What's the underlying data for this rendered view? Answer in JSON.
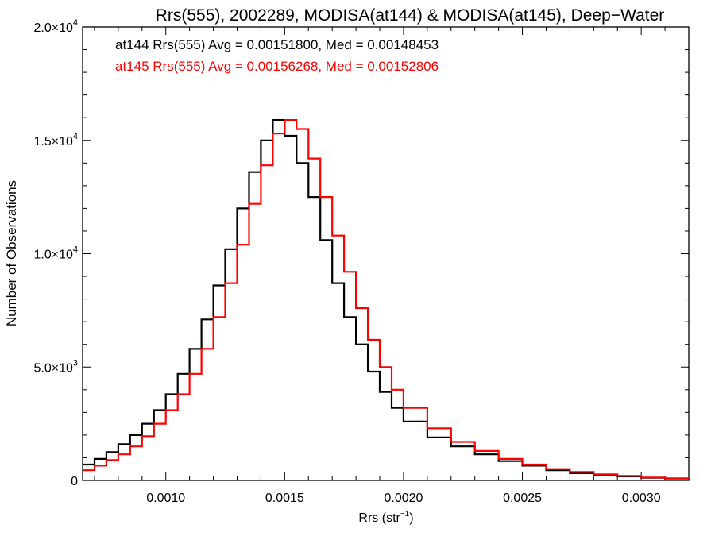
{
  "chart_data": {
    "type": "line",
    "title": "Rrs(555), 2002289, MODISA(at144) & MODISA(at145), Deep−Water",
    "xlabel": "Rrs (str",
    "xlabel_sup": "−1",
    "xlabel_close": ")",
    "ylabel": "Number of Observations",
    "xlim": [
      0.00065,
      0.0032
    ],
    "ylim": [
      0,
      20000
    ],
    "grid": false,
    "x_ticks": [
      0.001,
      0.0015,
      0.002,
      0.0025,
      0.003
    ],
    "x_tick_labels": [
      "0.0010",
      "0.0015",
      "0.0020",
      "0.0025",
      "0.0030"
    ],
    "y_ticks": [
      0,
      5000,
      10000,
      15000,
      20000
    ],
    "y_tick_labels": [
      {
        "mant": "0",
        "exp": ""
      },
      {
        "mant": "5.0×10",
        "exp": "3"
      },
      {
        "mant": "1.0×10",
        "exp": "4"
      },
      {
        "mant": "1.5×10",
        "exp": "4"
      },
      {
        "mant": "2.0×10",
        "exp": "4"
      }
    ],
    "annotations": [
      {
        "text": "at144 Rrs(555) Avg = 0.00151800, Med = 0.00148453",
        "color": "#000000"
      },
      {
        "text": "at145 Rrs(555) Avg = 0.00156268, Med = 0.00152806",
        "color": "#ff0000"
      }
    ],
    "series": [
      {
        "color": "#000000",
        "x": [
          0.00065,
          0.0007,
          0.00075,
          0.0008,
          0.00085,
          0.0009,
          0.00095,
          0.001,
          0.00105,
          0.0011,
          0.00115,
          0.0012,
          0.00125,
          0.0013,
          0.00135,
          0.0014,
          0.00145,
          0.0015,
          0.00155,
          0.0016,
          0.00165,
          0.0017,
          0.00175,
          0.0018,
          0.00185,
          0.0019,
          0.00195,
          0.002,
          0.0021,
          0.0022,
          0.0023,
          0.0024,
          0.0025,
          0.0026,
          0.0027,
          0.0028,
          0.0029,
          0.003,
          0.0031,
          0.0032
        ],
        "y": [
          700,
          950,
          1250,
          1600,
          2000,
          2500,
          3100,
          3800,
          4700,
          5800,
          7100,
          8600,
          10200,
          12000,
          13600,
          15000,
          15900,
          15200,
          14000,
          12500,
          10600,
          8700,
          7200,
          6000,
          4800,
          3900,
          3200,
          2600,
          1900,
          1500,
          1150,
          850,
          650,
          450,
          320,
          240,
          180,
          120,
          80,
          50
        ]
      },
      {
        "color": "#ff0000",
        "x": [
          0.00065,
          0.0007,
          0.00075,
          0.0008,
          0.00085,
          0.0009,
          0.00095,
          0.001,
          0.00105,
          0.0011,
          0.00115,
          0.0012,
          0.00125,
          0.0013,
          0.00135,
          0.0014,
          0.00145,
          0.0015,
          0.00155,
          0.0016,
          0.00165,
          0.0017,
          0.00175,
          0.0018,
          0.00185,
          0.0019,
          0.00195,
          0.002,
          0.0021,
          0.0022,
          0.0023,
          0.0024,
          0.0025,
          0.0026,
          0.0027,
          0.0028,
          0.0029,
          0.003,
          0.0031,
          0.0032
        ],
        "y": [
          450,
          650,
          900,
          1150,
          1500,
          1950,
          2500,
          3100,
          3800,
          4700,
          5800,
          7200,
          8700,
          10400,
          12200,
          13900,
          15300,
          15900,
          15500,
          14200,
          12500,
          10800,
          9200,
          7600,
          6200,
          5000,
          4000,
          3200,
          2300,
          1700,
          1300,
          950,
          700,
          500,
          370,
          270,
          200,
          130,
          90,
          60
        ]
      }
    ]
  }
}
